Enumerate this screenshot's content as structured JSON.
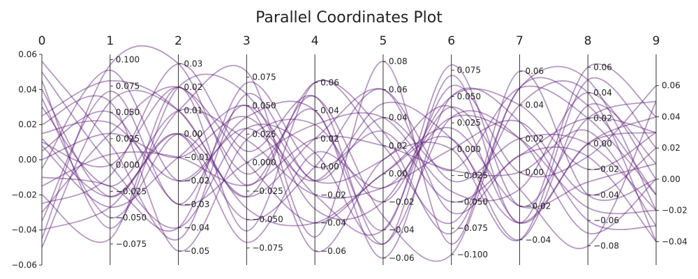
{
  "chart_data": {
    "type": "parallel_coordinates",
    "title": "Parallel Coordinates Plot",
    "line_color": "#5b1a78",
    "line_opacity": 0.45,
    "grid": false,
    "axes": [
      {
        "name": "0",
        "range": [
          -0.06,
          0.06
        ],
        "ticks": [
          "0.06",
          "0.04",
          "0.02",
          "0.00",
          "−0.02",
          "−0.04",
          "−0.06"
        ],
        "tick_values": [
          0.06,
          0.04,
          0.02,
          0.0,
          -0.02,
          -0.04,
          -0.06
        ]
      },
      {
        "name": "1",
        "range": [
          -0.095,
          0.105
        ],
        "ticks": [
          "0.100",
          "0.075",
          "0.050",
          "0.025",
          "0.000",
          "−0.025",
          "−0.050",
          "−0.075"
        ],
        "tick_values": [
          0.1,
          0.075,
          0.05,
          0.025,
          0.0,
          -0.025,
          -0.05,
          -0.075
        ]
      },
      {
        "name": "2",
        "range": [
          -0.056,
          0.034
        ],
        "ticks": [
          "0.03",
          "0.02",
          "0.01",
          "0.00",
          "−0.01",
          "−0.02",
          "−0.03",
          "−0.04",
          "−0.05"
        ],
        "tick_values": [
          0.03,
          0.02,
          0.01,
          0.0,
          -0.01,
          -0.02,
          -0.03,
          -0.04,
          -0.05
        ]
      },
      {
        "name": "3",
        "range": [
          -0.09,
          0.095
        ],
        "ticks": [
          "0.075",
          "0.050",
          "0.025",
          "0.000",
          "−0.025",
          "−0.050",
          "−0.075"
        ],
        "tick_values": [
          0.075,
          0.05,
          0.025,
          0.0,
          -0.025,
          -0.05,
          -0.075
        ]
      },
      {
        "name": "4",
        "range": [
          -0.07,
          0.08
        ],
        "ticks": [
          "0.06",
          "0.04",
          "0.02",
          "0.00",
          "−0.02",
          "−0.04",
          "−0.06"
        ],
        "tick_values": [
          0.06,
          0.04,
          0.02,
          0.0,
          -0.02,
          -0.04,
          -0.06
        ]
      },
      {
        "name": "5",
        "range": [
          -0.065,
          0.085
        ],
        "ticks": [
          "0.08",
          "0.06",
          "0.04",
          "0.02",
          "0.00",
          "−0.02",
          "−0.04",
          "−0.06"
        ],
        "tick_values": [
          0.08,
          0.06,
          0.04,
          0.02,
          0.0,
          -0.02,
          -0.04,
          -0.06
        ]
      },
      {
        "name": "6",
        "range": [
          -0.11,
          0.09
        ],
        "ticks": [
          "0.075",
          "0.050",
          "0.025",
          "0.000",
          "−0.025",
          "−0.050",
          "−0.075",
          "−0.100"
        ],
        "tick_values": [
          0.075,
          0.05,
          0.025,
          0.0,
          -0.025,
          -0.05,
          -0.075,
          -0.1
        ]
      },
      {
        "name": "7",
        "range": [
          -0.055,
          0.07
        ],
        "ticks": [
          "0.06",
          "0.04",
          "0.02",
          "0.00",
          "−0.02",
          "−0.04"
        ],
        "tick_values": [
          0.06,
          0.04,
          0.02,
          0.0,
          -0.02,
          -0.04
        ]
      },
      {
        "name": "8",
        "range": [
          -0.095,
          0.07
        ],
        "ticks": [
          "0.06",
          "0.04",
          "0.02",
          "0.00",
          "−0.02",
          "−0.04",
          "−0.06",
          "−0.08"
        ],
        "tick_values": [
          0.06,
          0.04,
          0.02,
          0.0,
          -0.02,
          -0.04,
          -0.06,
          -0.08
        ]
      },
      {
        "name": "9",
        "range": [
          -0.055,
          0.08
        ],
        "ticks": [
          "0.06",
          "0.04",
          "0.02",
          "0.00",
          "−0.02",
          "−0.04"
        ],
        "tick_values": [
          0.06,
          0.04,
          0.02,
          0.0,
          -0.02,
          -0.04
        ]
      }
    ],
    "series": [
      {
        "values": [
          0.056,
          0.02,
          -0.045,
          0.06,
          -0.01,
          0.04,
          -0.02,
          0.05,
          0.02,
          -0.01
        ]
      },
      {
        "values": [
          -0.045,
          0.095,
          0.03,
          -0.02,
          0.05,
          -0.05,
          0.07,
          -0.03,
          0.06,
          0.04
        ]
      },
      {
        "values": [
          0.04,
          -0.03,
          0.01,
          0.08,
          -0.05,
          0.08,
          -0.09,
          0.06,
          -0.04,
          0.0
        ]
      },
      {
        "values": [
          0.02,
          0.06,
          -0.05,
          0.02,
          0.03,
          -0.02,
          0.04,
          -0.01,
          -0.08,
          0.05
        ]
      },
      {
        "values": [
          -0.02,
          -0.07,
          0.02,
          -0.06,
          0.06,
          0.02,
          -0.07,
          0.04,
          0.04,
          -0.04
        ]
      },
      {
        "values": [
          0.0,
          0.03,
          -0.01,
          0.04,
          -0.02,
          -0.04,
          0.06,
          0.0,
          -0.01,
          0.06
        ]
      },
      {
        "values": [
          0.035,
          -0.05,
          0.0,
          -0.03,
          0.02,
          0.06,
          -0.03,
          0.02,
          0.0,
          -0.02
        ]
      },
      {
        "values": [
          -0.035,
          0.07,
          -0.03,
          0.05,
          -0.06,
          0.01,
          0.0,
          -0.04,
          0.05,
          0.02
        ]
      },
      {
        "values": [
          0.01,
          0.0,
          0.02,
          -0.01,
          0.04,
          -0.06,
          0.05,
          0.03,
          -0.06,
          -0.03
        ]
      },
      {
        "values": [
          -0.01,
          -0.02,
          -0.04,
          0.07,
          0.0,
          0.03,
          -0.05,
          0.01,
          0.02,
          0.03
        ]
      },
      {
        "values": [
          0.025,
          0.08,
          0.01,
          -0.04,
          -0.04,
          0.0,
          0.02,
          -0.02,
          -0.03,
          0.01
        ]
      },
      {
        "values": [
          -0.025,
          -0.01,
          0.03,
          0.01,
          0.05,
          -0.03,
          -0.1,
          0.05,
          0.03,
          -0.01
        ]
      },
      {
        "values": [
          0.015,
          0.04,
          -0.02,
          0.03,
          -0.01,
          0.05,
          0.01,
          -0.03,
          0.0,
          0.04
        ]
      },
      {
        "values": [
          -0.04,
          -0.04,
          0.0,
          -0.07,
          0.01,
          -0.01,
          0.03,
          0.02,
          -0.05,
          -0.02
        ]
      },
      {
        "values": [
          0.005,
          0.05,
          -0.03,
          0.0,
          0.03,
          0.04,
          -0.04,
          -0.01,
          0.04,
          0.0
        ]
      },
      {
        "values": [
          0.045,
          -0.06,
          0.02,
          0.06,
          -0.03,
          -0.02,
          0.05,
          0.04,
          -0.02,
          0.03
        ]
      },
      {
        "values": [
          -0.015,
          0.01,
          -0.01,
          -0.02,
          0.02,
          0.02,
          -0.02,
          0.0,
          0.01,
          -0.03
        ]
      },
      {
        "values": [
          0.03,
          -0.02,
          0.01,
          0.02,
          -0.02,
          -0.01,
          0.0,
          0.03,
          -0.04,
          0.02
        ]
      },
      {
        "values": [
          -0.005,
          0.09,
          -0.02,
          0.04,
          0.04,
          -0.04,
          0.08,
          -0.02,
          0.02,
          0.05
        ]
      },
      {
        "values": [
          0.012,
          -0.03,
          0.0,
          -0.05,
          0.0,
          0.06,
          -0.06,
          0.01,
          -0.01,
          -0.04
        ]
      },
      {
        "values": [
          -0.03,
          0.03,
          0.02,
          0.0,
          -0.04,
          0.0,
          0.01,
          -0.04,
          0.03,
          0.01
        ]
      },
      {
        "values": [
          0.05,
          0.0,
          -0.04,
          0.03,
          0.01,
          -0.05,
          0.03,
          0.02,
          -0.07,
          0.0
        ]
      },
      {
        "values": [
          -0.05,
          0.06,
          0.01,
          -0.03,
          0.06,
          0.03,
          -0.08,
          0.05,
          0.05,
          -0.02
        ]
      },
      {
        "values": [
          0.008,
          -0.04,
          -0.01,
          0.05,
          -0.01,
          0.01,
          0.04,
          -0.03,
          0.0,
          0.03
        ]
      }
    ]
  }
}
